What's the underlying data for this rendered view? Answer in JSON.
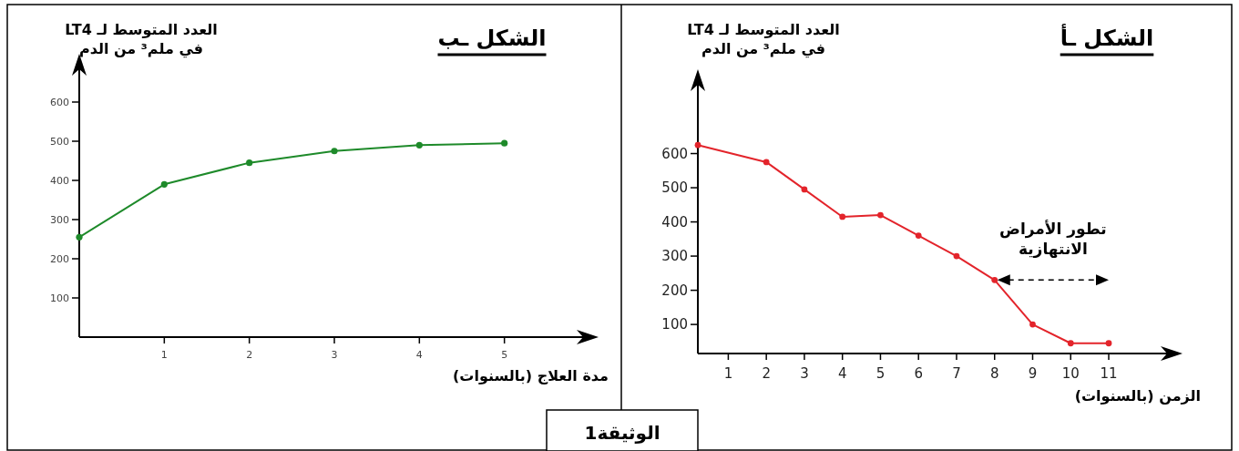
{
  "chart_data": [
    {
      "type": "line",
      "title": "الشكل ـأ",
      "ylabel": "العدد المتوسط لـ LT4\nفي ملم³ من الدم",
      "xlabel": "الزمن (بالسنوات)",
      "x": [
        0.2,
        2,
        3,
        4,
        5,
        6,
        7,
        8,
        9,
        10,
        11
      ],
      "series": [
        {
          "color": "#e3242b",
          "values": [
            625,
            575,
            495,
            415,
            420,
            360,
            300,
            230,
            100,
            45,
            45
          ]
        }
      ],
      "marker": "circle",
      "grid": false,
      "xlim": [
        0.2,
        12.7
      ],
      "ylim": [
        15,
        820
      ],
      "xticks": [
        1,
        2,
        3,
        4,
        5,
        6,
        7,
        8,
        9,
        10,
        11
      ],
      "yticks": [
        100,
        200,
        300,
        400,
        500,
        600
      ],
      "annotations": [
        {
          "text": "تطور الأمراض\nالانتهازية",
          "x": 8,
          "y": 230
        },
        "الوثيقة1"
      ]
    },
    {
      "type": "line",
      "title": "الشكل ـب",
      "ylabel": "العدد المتوسط لـ LT4\nفي ملم³ من الدم",
      "xlabel": "مدة العلاج (بالسنوات)",
      "x": [
        0,
        1,
        2,
        3,
        4,
        5
      ],
      "series": [
        {
          "color": "#1e8a2a",
          "values": [
            255,
            390,
            445,
            475,
            490,
            495
          ]
        }
      ],
      "marker": "circle",
      "grid": false,
      "xlim": [
        0,
        6
      ],
      "ylim": [
        0,
        700
      ],
      "xticks": [
        1,
        2,
        3,
        4,
        5
      ],
      "yticks": [
        100,
        200,
        300,
        400,
        500,
        600
      ]
    }
  ]
}
